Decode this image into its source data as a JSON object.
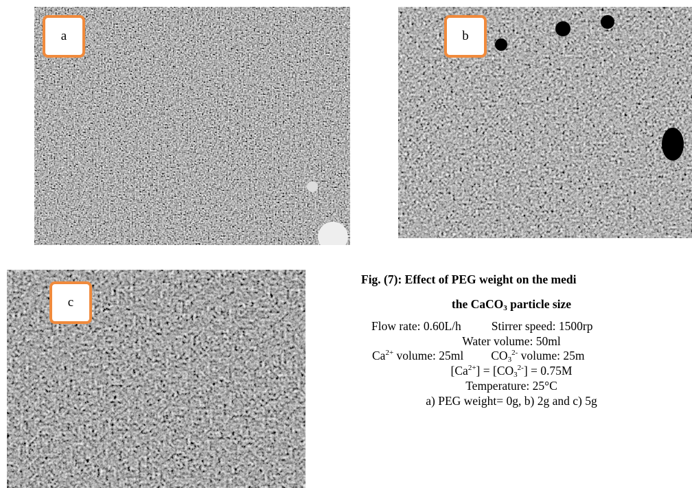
{
  "figures": [
    {
      "label": "a"
    },
    {
      "label": "b"
    },
    {
      "label": "c"
    }
  ],
  "caption": {
    "title_line1": "Fig. (7): Effect of PEG weight on the medi",
    "title_line2": [
      "the CaCO",
      "3",
      " particle size"
    ],
    "flow_rate": "Flow rate: 0.60L/h",
    "stirrer_speed": "Stirrer speed: 1500rp",
    "water_volume": "Water volume: 50ml",
    "ca_volume": [
      "Ca",
      "2+",
      " volume: 25ml"
    ],
    "co3_volume": [
      "CO",
      "3",
      "2-",
      " volume: 25m"
    ],
    "concentration": [
      "[Ca",
      "2+",
      "] = [CO",
      "3",
      "2-",
      "] = 0.75M"
    ],
    "temperature": "Temperature: 25°C",
    "peg_weight": "a) PEG weight= 0g, b) 2g and c) 5g"
  }
}
